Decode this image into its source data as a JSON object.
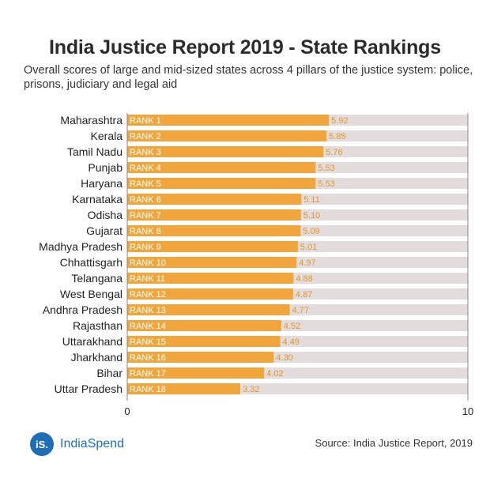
{
  "header": {
    "title": "India Justice Report 2019 - State Rankings",
    "subtitle": "Overall scores of large and mid-sized states across 4 pillars of the justice system: police, prisons, judiciary and legal aid"
  },
  "footer": {
    "logo_mark": "iS.",
    "logo_text": "IndiaSpend",
    "source": "Source: India Justice Report, 2019"
  },
  "colors": {
    "bar": "#f0a63c",
    "track": "#e3dcdd",
    "rank_text": "#ffffff",
    "value_text": "#e3942c",
    "logo": "#1f6db5"
  },
  "chart_data": {
    "type": "bar",
    "orientation": "horizontal",
    "xlim": [
      0,
      10
    ],
    "x_ticks": [
      "0",
      "10"
    ],
    "categories": [
      "Maharashtra",
      "Kerala",
      "Tamil Nadu",
      "Punjab",
      "Haryana",
      "Karnataka",
      "Odisha",
      "Gujarat",
      "Madhya Pradesh",
      "Chhattisgarh",
      "Telangana",
      "West Bengal",
      "Andhra Pradesh",
      "Rajasthan",
      "Uttarakhand",
      "Jharkhand",
      "Bihar",
      "Uttar Pradesh"
    ],
    "ranks": [
      "RANK 1",
      "RANK 2",
      "RANK 3",
      "RANK 4",
      "RANK 5",
      "RANK 6",
      "RANK 7",
      "RANK 8",
      "RANK 9",
      "RANK 10",
      "RANK 11",
      "RANK 12",
      "RANK 13",
      "RANK 14",
      "RANK 15",
      "RANK 16",
      "RANK 17",
      "RANK 18"
    ],
    "values": [
      5.92,
      5.85,
      5.76,
      5.53,
      5.53,
      5.11,
      5.1,
      5.09,
      5.01,
      4.97,
      4.88,
      4.87,
      4.77,
      4.52,
      4.49,
      4.3,
      4.02,
      3.32
    ],
    "value_labels": [
      "5.92",
      "5.85",
      "5.76",
      "5.53",
      "5.53",
      "5.11",
      "5.10",
      "5.09",
      "5.01",
      "4.97",
      "4.88",
      "4.87",
      "4.77",
      "4.52",
      "4.49",
      "4.30",
      "4.02",
      "3.32"
    ]
  }
}
